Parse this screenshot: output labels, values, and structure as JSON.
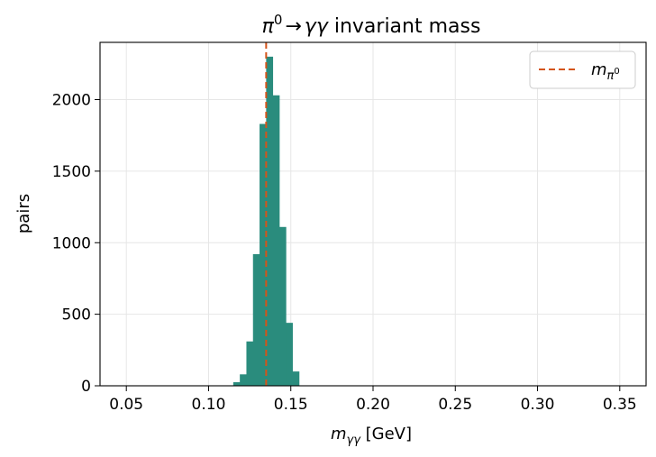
{
  "chart_data": {
    "type": "bar",
    "title": {
      "particle": "π",
      "particle_sup": "0",
      "arrow": "→",
      "products": "γγ",
      "text": " invariant mass"
    },
    "xlabel": {
      "symbol": "m",
      "subscript": "γγ",
      "unit": " [GeV]"
    },
    "ylabel": "pairs",
    "xlim": [
      0.034,
      0.366
    ],
    "ylim": [
      0,
      2400
    ],
    "xticks": [
      0.05,
      0.1,
      0.15,
      0.2,
      0.25,
      0.3,
      0.35
    ],
    "xtick_labels": [
      "0.05",
      "0.10",
      "0.15",
      "0.20",
      "0.25",
      "0.30",
      "0.35"
    ],
    "yticks": [
      0,
      500,
      1000,
      1500,
      2000
    ],
    "ytick_labels": [
      "0",
      "500",
      "1000",
      "1500",
      "2000"
    ],
    "grid": true,
    "bar_color": "#2a8c7d",
    "reference_color": "#d4541a",
    "bins": {
      "width": 0.004,
      "edges": [
        0.115,
        0.119,
        0.123,
        0.127,
        0.131,
        0.135,
        0.139,
        0.143,
        0.147,
        0.151
      ],
      "counts": [
        25,
        80,
        310,
        920,
        1830,
        2300,
        2030,
        1110,
        440,
        100
      ]
    },
    "reference_line": {
      "x": 0.135,
      "style": "dashed",
      "legend": {
        "symbol": "m",
        "subscript": "π",
        "subscript_sup": "0"
      }
    },
    "legend_position": "top-right"
  }
}
